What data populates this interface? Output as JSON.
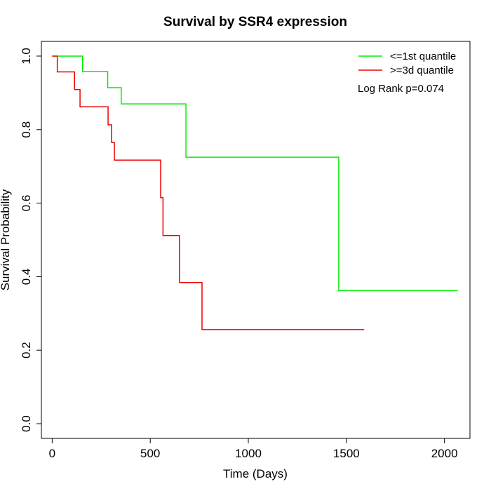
{
  "chart_data": {
    "type": "line",
    "title": "Survival by SSR4 expression",
    "xlabel": "Time (Days)",
    "ylabel": "Survival Probability",
    "xlim": [
      -55,
      2130
    ],
    "ylim": [
      -0.04,
      1.04
    ],
    "x_ticks": [
      0,
      500,
      1000,
      1500,
      2000
    ],
    "y_ticks": [
      0.0,
      0.2,
      0.4,
      0.6,
      0.8,
      1.0
    ],
    "x_tick_labels": [
      "0",
      "500",
      "1000",
      "1500",
      "2000"
    ],
    "y_tick_labels": [
      "0.0",
      "0.2",
      "0.4",
      "0.6",
      "0.8",
      "1.0"
    ],
    "legend_position": "top-right",
    "annotation": "Log Rank p=0.074",
    "series": [
      {
        "name": "<=1st quantile",
        "color": "#00ee00",
        "step": true,
        "points": [
          [
            0,
            1.0
          ],
          [
            155,
            0.958
          ],
          [
            283,
            0.914
          ],
          [
            352,
            0.87
          ],
          [
            682,
            0.725
          ],
          [
            1461,
            0.362
          ],
          [
            2068,
            0.362
          ]
        ]
      },
      {
        "name": ">=3d quantile",
        "color": "#ee0000",
        "step": true,
        "points": [
          [
            0,
            1.0
          ],
          [
            26,
            0.957
          ],
          [
            114,
            0.909
          ],
          [
            142,
            0.862
          ],
          [
            285,
            0.813
          ],
          [
            303,
            0.765
          ],
          [
            317,
            0.717
          ],
          [
            553,
            0.615
          ],
          [
            565,
            0.512
          ],
          [
            649,
            0.384
          ],
          [
            764,
            0.256
          ],
          [
            1591,
            0.256
          ]
        ]
      }
    ]
  }
}
